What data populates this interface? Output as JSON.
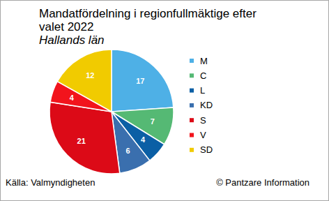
{
  "chart_data": {
    "type": "pie",
    "title": "Mandatfördelning i regionfullmäktige efter valet 2022",
    "subtitle": "Hallands län",
    "categories": [
      "M",
      "C",
      "L",
      "KD",
      "S",
      "V",
      "SD"
    ],
    "values": [
      17,
      7,
      4,
      6,
      21,
      4,
      12
    ],
    "colors": [
      "#4eb0e6",
      "#55b974",
      "#0b5fa5",
      "#3a6fae",
      "#dc0a17",
      "#f2141c",
      "#f1cb00"
    ],
    "data_labels": true,
    "legend": "right",
    "annotations": [
      "Källa: Valmyndigheten",
      "© Pantzare Information"
    ]
  }
}
